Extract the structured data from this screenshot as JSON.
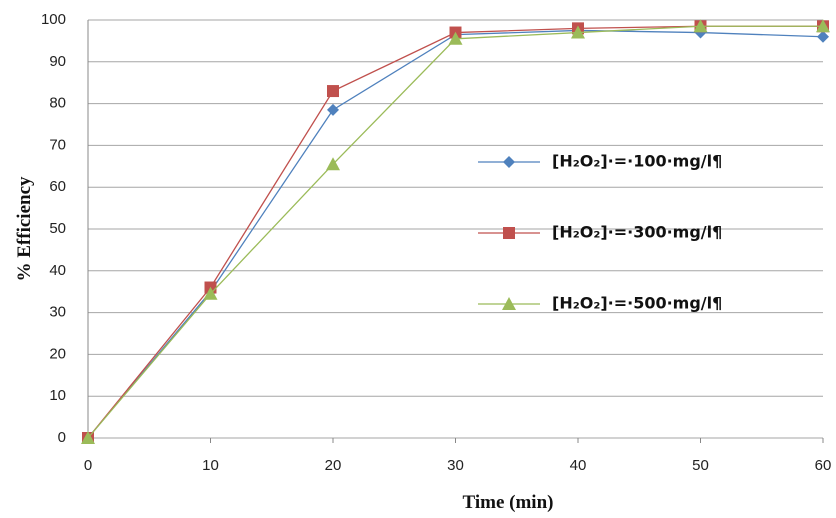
{
  "chart_data": {
    "type": "line",
    "x_label": "Time (min)",
    "y_label": "% Efficiency",
    "x": [
      0,
      10,
      20,
      30,
      40,
      50,
      60
    ],
    "series": [
      {
        "name": "[H₂O₂]·=·100·mg/l¶",
        "color": "#4f81bd",
        "marker": "diamond",
        "values": [
          0,
          35,
          78.5,
          96.5,
          97.5,
          97,
          96
        ]
      },
      {
        "name": "[H₂O₂]·=·300·mg/l¶",
        "color": "#c0504d",
        "marker": "square",
        "values": [
          0,
          36,
          83,
          97,
          98,
          98.5,
          98.5
        ]
      },
      {
        "name": "[H₂O₂]·=·500·mg/l¶",
        "color": "#9bbb59",
        "marker": "triangle",
        "values": [
          0,
          34.5,
          65.5,
          95.5,
          97,
          98.5,
          98.5
        ]
      }
    ],
    "xlim": [
      0,
      60
    ],
    "xticks": [
      0,
      10,
      20,
      30,
      40,
      50,
      60
    ],
    "ylim": [
      0,
      100
    ],
    "yticks": [
      0,
      10,
      20,
      30,
      40,
      50,
      60,
      70,
      80,
      90,
      100
    ],
    "grid": true
  }
}
